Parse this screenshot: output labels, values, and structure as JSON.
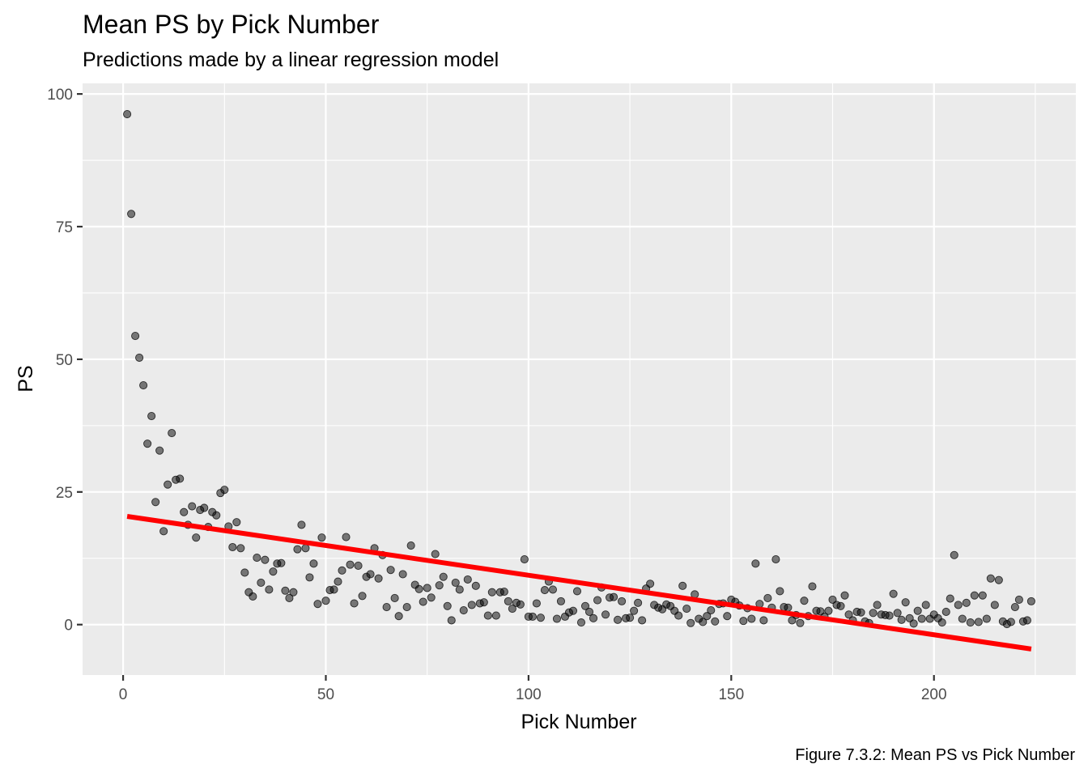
{
  "chart_data": {
    "type": "scatter",
    "title": "Mean PS by Pick Number",
    "subtitle": "Predictions made by a linear regression model",
    "caption": "Figure 7.3.2: Mean PS vs Pick Number",
    "xlabel": "Pick Number",
    "ylabel": "PS",
    "xlim": [
      -10,
      235
    ],
    "ylim": [
      -9.5,
      102
    ],
    "x_ticks": [
      0,
      50,
      100,
      150,
      200
    ],
    "y_ticks": [
      0,
      25,
      50,
      75,
      100
    ],
    "grid": true,
    "point_color": "#000000",
    "point_alpha": 0.5,
    "line_color": "#ff0000",
    "regression_line": {
      "x": [
        1,
        224
      ],
      "y": [
        20.4,
        -4.6
      ]
    },
    "series": [
      {
        "x": [
          1,
          2,
          3,
          4,
          5,
          6,
          7,
          8,
          9,
          10,
          11,
          12,
          13,
          14,
          15,
          16,
          17,
          18,
          19,
          20,
          21,
          22,
          23,
          24,
          25,
          26,
          27,
          28,
          29,
          30,
          31,
          32,
          33,
          34,
          35,
          36,
          37,
          38,
          39,
          40,
          41,
          42,
          43,
          44,
          45,
          46,
          47,
          48,
          49,
          50,
          51,
          52,
          53,
          54,
          55,
          56,
          57,
          58,
          59,
          60,
          61,
          62,
          63,
          64,
          65,
          66,
          67,
          68,
          69,
          70,
          71,
          72,
          73,
          74,
          75,
          76,
          77,
          78,
          79,
          80,
          81,
          82,
          83,
          84,
          85,
          86,
          87,
          88,
          89,
          90,
          91,
          92,
          93,
          94,
          95,
          96,
          97,
          98,
          99,
          100,
          101,
          102,
          103,
          104,
          105,
          106,
          107,
          108,
          109,
          110,
          111,
          112,
          113,
          114,
          115,
          116,
          117,
          118,
          119,
          120,
          121,
          122,
          123,
          124,
          125,
          126,
          127,
          128,
          129,
          130,
          131,
          132,
          133,
          134,
          135,
          136,
          137,
          138,
          139,
          140,
          141,
          142,
          143,
          144,
          145,
          146,
          147,
          148,
          149,
          150,
          151,
          152,
          153,
          154,
          155,
          156,
          157,
          158,
          159,
          160,
          161,
          162,
          163,
          164,
          165,
          166,
          167,
          168,
          169,
          170,
          171,
          172,
          173,
          174,
          175,
          176,
          177,
          178,
          179,
          180,
          181,
          182,
          183,
          184,
          185,
          186,
          187,
          188,
          189,
          190,
          191,
          192,
          193,
          194,
          195,
          196,
          197,
          198,
          199,
          200,
          201,
          202,
          203,
          204,
          205,
          206,
          207,
          208,
          209,
          210,
          211,
          212,
          213,
          214,
          215,
          216,
          217,
          218,
          219,
          220,
          221,
          222,
          223,
          224
        ],
        "y": [
          96.2,
          77.4,
          54.4,
          50.3,
          45.1,
          34.1,
          39.3,
          23.1,
          32.8,
          17.6,
          26.4,
          36.1,
          27.3,
          27.5,
          21.2,
          18.8,
          22.3,
          16.4,
          21.6,
          22.0,
          18.4,
          21.2,
          20.6,
          24.8,
          25.4,
          18.5,
          14.6,
          19.3,
          14.4,
          9.8,
          6.1,
          5.3,
          12.6,
          7.9,
          12.2,
          6.6,
          10.0,
          11.5,
          11.6,
          6.4,
          5.0,
          6.1,
          14.2,
          18.8,
          14.4,
          8.9,
          11.5,
          3.9,
          16.4,
          4.5,
          6.5,
          6.6,
          8.1,
          10.2,
          16.5,
          11.3,
          4.0,
          11.1,
          5.4,
          9.0,
          9.5,
          14.4,
          8.7,
          13.1,
          3.3,
          10.3,
          5.0,
          1.6,
          9.5,
          3.3,
          14.9,
          7.5,
          6.7,
          4.3,
          6.9,
          5.1,
          13.3,
          7.4,
          9.0,
          3.5,
          0.8,
          7.9,
          6.6,
          2.7,
          8.5,
          3.7,
          7.3,
          4.0,
          4.2,
          1.7,
          6.1,
          1.7,
          6.1,
          6.2,
          4.4,
          3.0,
          4.1,
          3.8,
          12.3,
          1.5,
          1.5,
          4.0,
          1.3,
          6.5,
          8.1,
          6.6,
          1.1,
          4.4,
          1.5,
          2.3,
          2.6,
          6.3,
          0.4,
          3.5,
          2.4,
          1.2,
          4.6,
          7.0,
          1.9,
          5.1,
          5.2,
          0.9,
          4.4,
          1.2,
          1.3,
          2.6,
          4.1,
          0.8,
          6.8,
          7.7,
          3.7,
          3.2,
          2.9,
          3.8,
          3.5,
          2.6,
          1.7,
          7.3,
          3.0,
          0.3,
          5.7,
          1.1,
          0.5,
          1.6,
          2.7,
          0.6,
          3.9,
          4.0,
          1.6,
          4.7,
          4.3,
          3.6,
          0.7,
          3.1,
          1.1,
          11.5,
          3.9,
          0.8,
          5.0,
          3.2,
          12.3,
          6.3,
          3.3,
          3.2,
          0.8,
          1.8,
          0.3,
          4.5,
          1.6,
          7.2,
          2.6,
          2.5,
          1.5,
          2.6,
          4.7,
          3.7,
          3.5,
          5.5,
          1.9,
          0.8,
          2.4,
          2.3,
          0.6,
          0.3,
          2.2,
          3.7,
          1.9,
          1.8,
          1.7,
          5.8,
          2.2,
          0.9,
          4.2,
          1.2,
          0.2,
          2.6,
          1.1,
          3.7,
          1.1,
          1.9,
          1.2,
          0.4,
          2.4,
          4.9,
          13.1,
          3.7,
          1.1,
          4.1,
          0.4,
          5.5,
          0.5,
          5.5,
          1.1,
          8.7,
          3.7,
          8.4,
          0.6,
          0.1,
          0.5,
          3.3,
          4.7,
          0.6,
          0.8,
          4.4
        ]
      }
    ]
  }
}
